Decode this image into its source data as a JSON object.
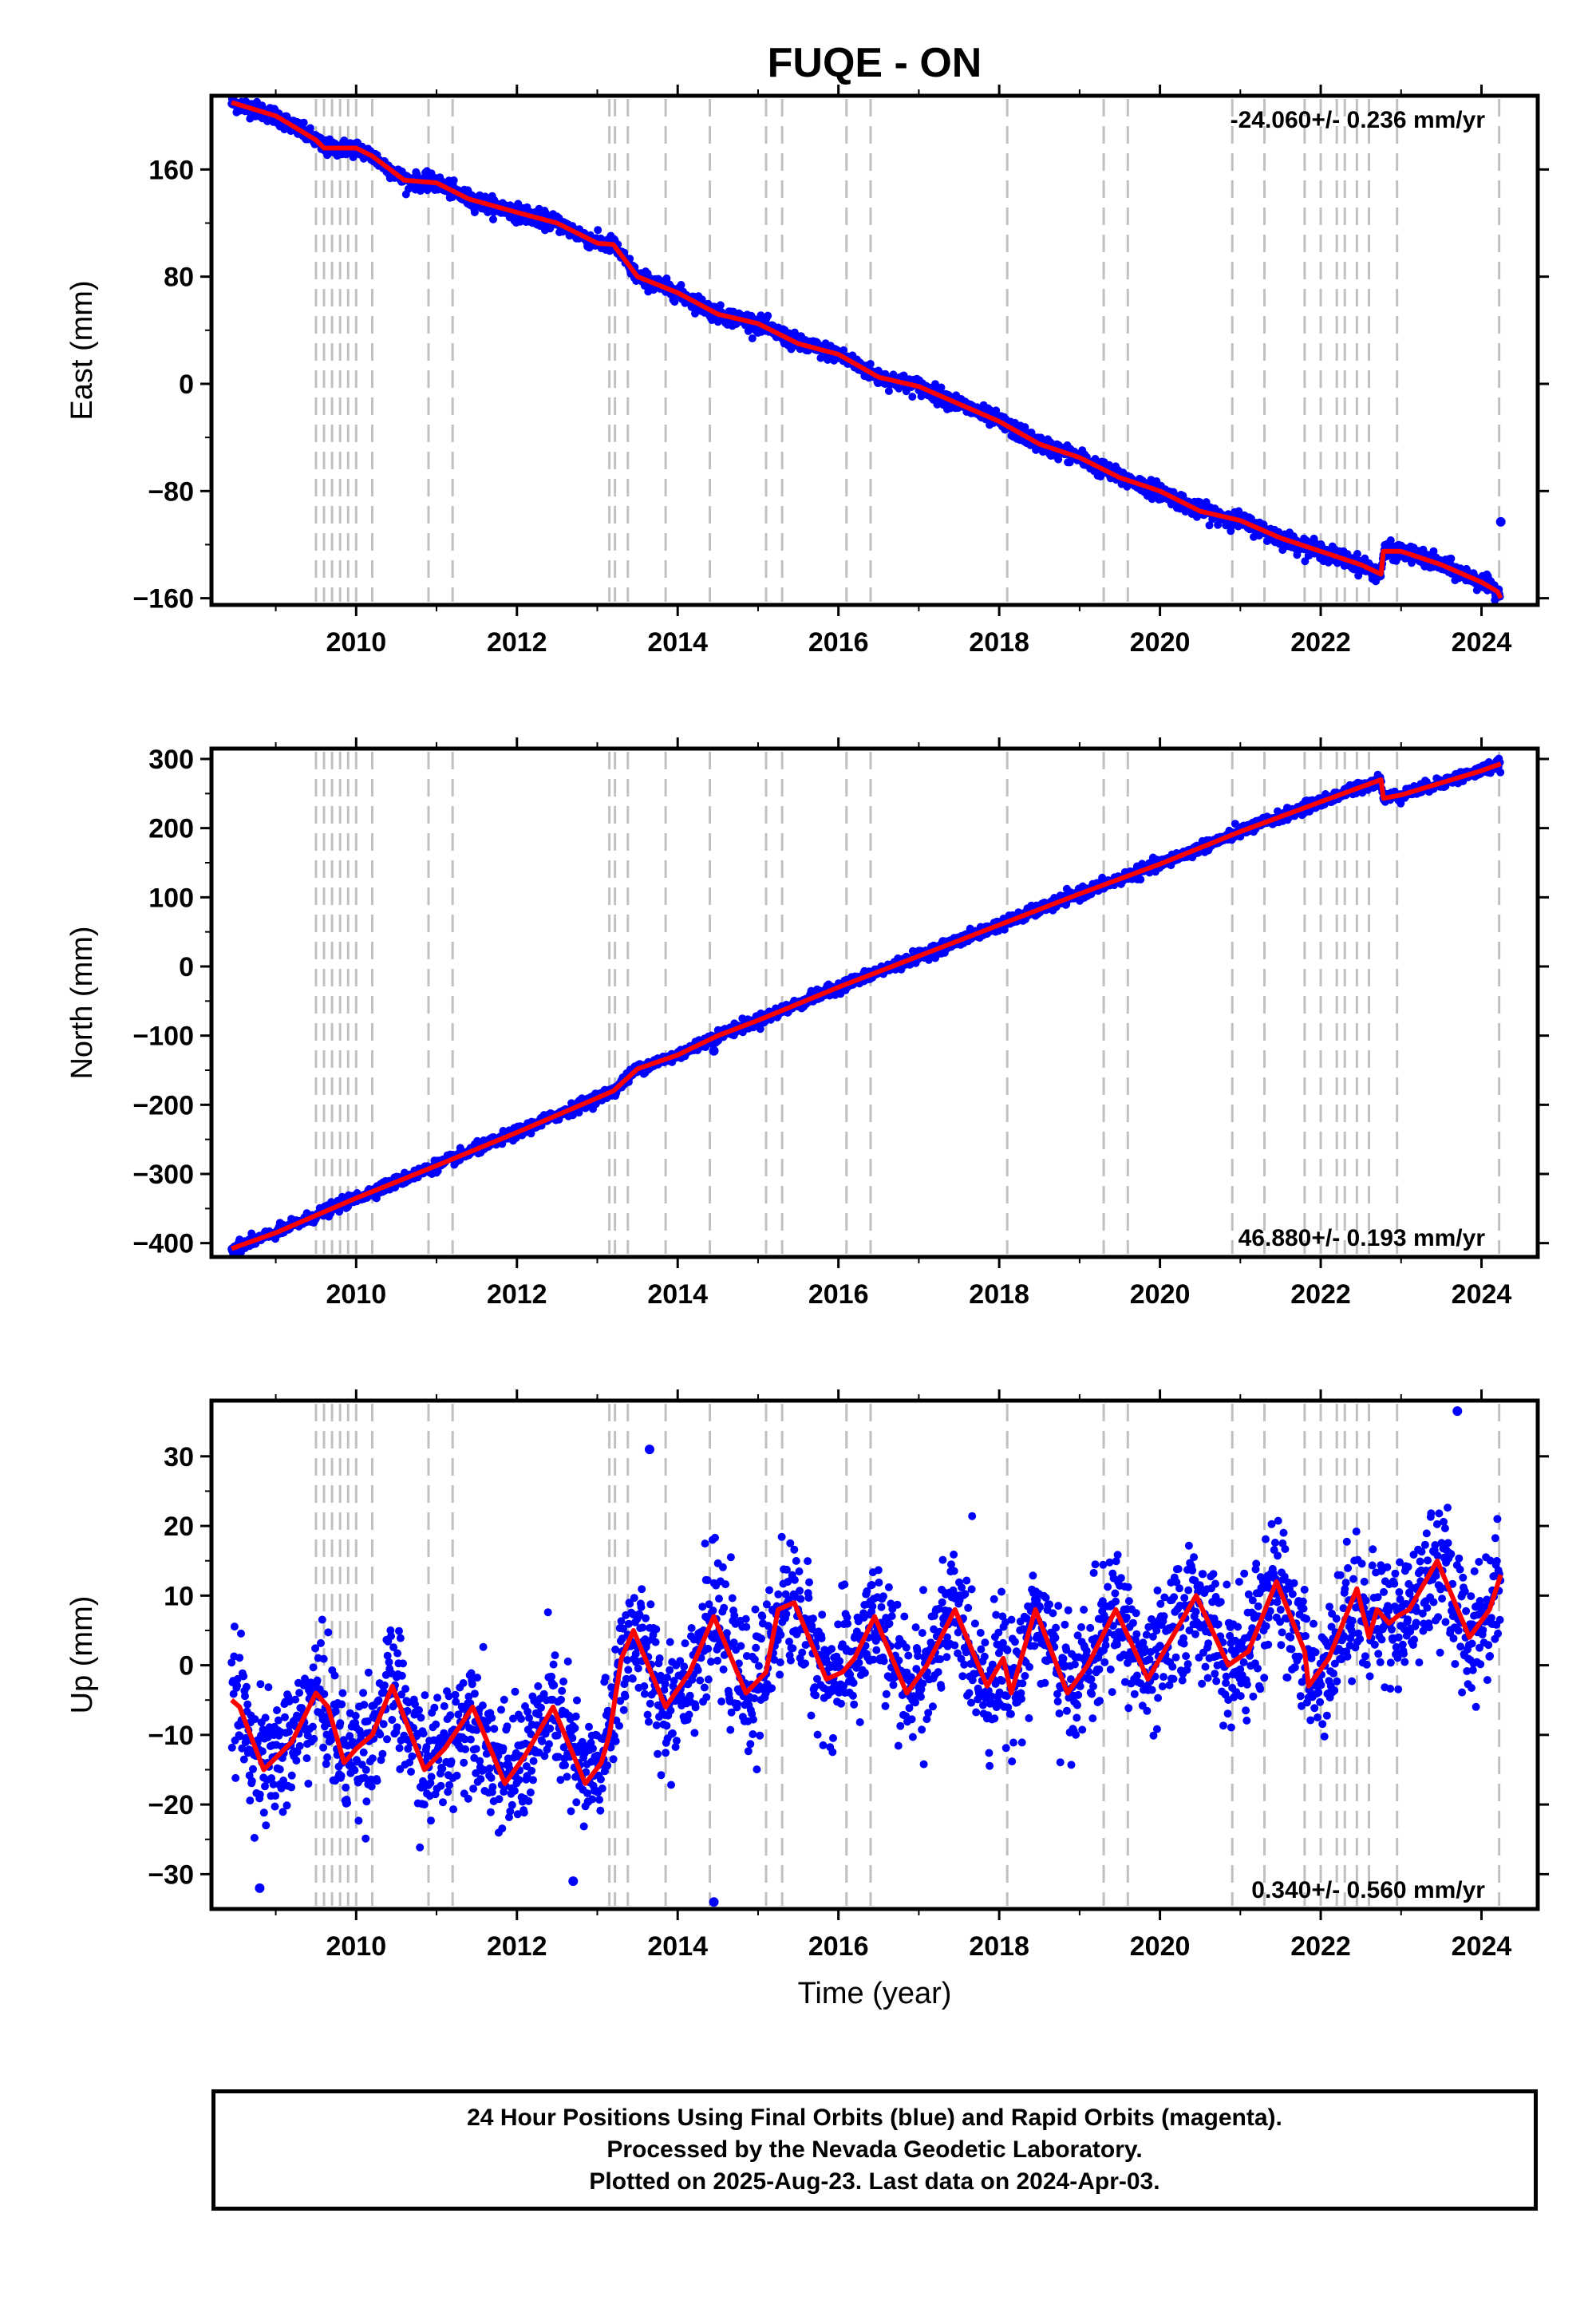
{
  "title": "FUQE - ON",
  "footer": {
    "line1": "24 Hour Positions Using Final Orbits (blue) and Rapid Orbits (magenta).",
    "line2": "Processed by the Nevada Geodetic Laboratory.",
    "line3": "Plotted on 2025-Aug-23. Last data on 2024-Apr-03."
  },
  "colors": {
    "data_points": "#0000ff",
    "model_line": "#ff0000",
    "event_lines": "#c0c0c0"
  },
  "chart_data": [
    {
      "type": "scatter",
      "name": "east",
      "ylabel": "East (mm)",
      "xlabel": "",
      "rate_label": "-24.060+/- 0.236 mm/yr",
      "rate_position": "top-right",
      "xlim": [
        2008.2,
        2024.7
      ],
      "ylim": [
        -165,
        215
      ],
      "xticks": [
        2010,
        2012,
        2014,
        2016,
        2018,
        2020,
        2022,
        2024
      ],
      "yticks": [
        -160,
        -80,
        0,
        80,
        160
      ],
      "event_lines": [
        2009.5,
        2009.6,
        2009.7,
        2009.8,
        2009.9,
        2010.0,
        2010.2,
        2010.9,
        2011.2,
        2013.15,
        2013.22,
        2013.38,
        2013.85,
        2014.4,
        2015.1,
        2015.3,
        2016.1,
        2016.4,
        2018.1,
        2019.3,
        2019.6,
        2020.9,
        2021.3,
        2021.8,
        2022.0,
        2022.2,
        2022.3,
        2022.45,
        2022.6,
        2022.95,
        2024.22
      ],
      "model": {
        "x": [
          2008.45,
          2009.0,
          2009.5,
          2009.6,
          2010.0,
          2010.2,
          2010.6,
          2011.0,
          2011.4,
          2012.0,
          2012.5,
          2013.0,
          2013.2,
          2013.5,
          2014.0,
          2014.5,
          2015.0,
          2015.5,
          2016.0,
          2016.5,
          2017.0,
          2017.5,
          2018.0,
          2018.5,
          2019.0,
          2019.5,
          2020.0,
          2020.5,
          2021.0,
          2021.5,
          2022.0,
          2022.5,
          2022.75,
          2022.78,
          2023.0,
          2023.5,
          2024.0,
          2024.2,
          2024.24
        ],
        "y": [
          210,
          200,
          182,
          176,
          176,
          170,
          152,
          150,
          138,
          128,
          120,
          105,
          104,
          80,
          68,
          52,
          45,
          30,
          22,
          5,
          -2,
          -15,
          -28,
          -45,
          -55,
          -70,
          -80,
          -95,
          -102,
          -115,
          -125,
          -135,
          -142,
          -125,
          -125,
          -135,
          -148,
          -155,
          -160
        ]
      },
      "scatter_noise": 3,
      "outliers": [
        {
          "x": 2024.24,
          "y": -103
        }
      ]
    },
    {
      "type": "scatter",
      "name": "north",
      "ylabel": "North (mm)",
      "xlabel": "",
      "rate_label": "46.880+/- 0.193 mm/yr",
      "rate_position": "bottom-right",
      "xlim": [
        2008.2,
        2024.7
      ],
      "ylim": [
        -420,
        315
      ],
      "xticks": [
        2010,
        2012,
        2014,
        2016,
        2018,
        2020,
        2022,
        2024
      ],
      "yticks": [
        -400,
        -300,
        -200,
        -100,
        0,
        100,
        200,
        300
      ],
      "event_lines": [
        2009.5,
        2009.6,
        2009.7,
        2009.8,
        2009.9,
        2010.0,
        2010.2,
        2010.9,
        2011.2,
        2013.15,
        2013.22,
        2013.38,
        2013.85,
        2014.4,
        2015.1,
        2015.3,
        2016.1,
        2016.4,
        2018.1,
        2019.3,
        2019.6,
        2020.9,
        2021.3,
        2021.8,
        2022.0,
        2022.2,
        2022.3,
        2022.45,
        2022.6,
        2022.95,
        2024.22
      ],
      "model": {
        "x": [
          2008.45,
          2009.0,
          2010.0,
          2011.0,
          2012.0,
          2013.0,
          2013.2,
          2013.5,
          2014.0,
          2014.5,
          2015.0,
          2016.0,
          2017.0,
          2018.0,
          2019.0,
          2020.0,
          2021.0,
          2022.0,
          2022.75,
          2022.78,
          2023.0,
          2024.0,
          2024.24
        ],
        "y": [
          -408,
          -385,
          -335,
          -288,
          -240,
          -190,
          -180,
          -148,
          -128,
          -100,
          -78,
          -30,
          15,
          60,
          105,
          148,
          195,
          238,
          270,
          243,
          248,
          283,
          293
        ]
      },
      "scatter_noise": 4,
      "outliers": [
        {
          "x": 2014.45,
          "y": -122
        }
      ]
    },
    {
      "type": "scatter",
      "name": "up",
      "ylabel": "Up (mm)",
      "xlabel": "Time (year)",
      "rate_label": "0.340+/- 0.560 mm/yr",
      "rate_position": "bottom-right",
      "xlim": [
        2008.2,
        2024.7
      ],
      "ylim": [
        -35,
        38
      ],
      "xticks": [
        2010,
        2012,
        2014,
        2016,
        2018,
        2020,
        2022,
        2024
      ],
      "yticks": [
        -30,
        -20,
        -10,
        0,
        10,
        20,
        30
      ],
      "event_lines": [
        2009.5,
        2009.6,
        2009.7,
        2009.8,
        2009.9,
        2010.0,
        2010.2,
        2010.9,
        2011.2,
        2013.15,
        2013.22,
        2013.38,
        2013.85,
        2014.4,
        2015.1,
        2015.3,
        2016.1,
        2016.4,
        2018.1,
        2019.3,
        2019.6,
        2020.9,
        2021.3,
        2021.8,
        2022.0,
        2022.2,
        2022.3,
        2022.45,
        2022.6,
        2022.95,
        2024.22
      ],
      "model": {
        "x": [
          2008.45,
          2008.55,
          2008.85,
          2009.2,
          2009.5,
          2009.65,
          2009.85,
          2010.0,
          2010.2,
          2010.45,
          2010.85,
          2011.1,
          2011.45,
          2011.85,
          2012.1,
          2012.45,
          2012.85,
          2013.05,
          2013.15,
          2013.3,
          2013.45,
          2013.85,
          2014.15,
          2014.45,
          2014.85,
          2015.1,
          2015.25,
          2015.45,
          2015.85,
          2016.05,
          2016.2,
          2016.45,
          2016.85,
          2017.1,
          2017.45,
          2017.85,
          2018.05,
          2018.15,
          2018.45,
          2018.85,
          2019.1,
          2019.45,
          2019.85,
          2020.1,
          2020.45,
          2020.85,
          2021.1,
          2021.45,
          2021.8,
          2021.85,
          2022.1,
          2022.45,
          2022.6,
          2022.7,
          2022.85,
          2022.95,
          2023.1,
          2023.45,
          2023.85,
          2024.1,
          2024.24
        ],
        "y": [
          -5,
          -6,
          -15,
          -11,
          -4,
          -6,
          -14,
          -12,
          -10,
          -3,
          -15,
          -12,
          -6,
          -17,
          -13,
          -6,
          -17,
          -14,
          -10,
          1,
          5,
          -6,
          -1,
          7,
          -4,
          -1,
          8,
          9,
          -2,
          -1,
          1,
          7,
          -4,
          0,
          8,
          -3,
          1,
          -4,
          8,
          -4,
          0,
          8,
          -2,
          3,
          10,
          0,
          2,
          12,
          2,
          -3,
          1,
          11,
          4,
          8,
          6,
          7,
          8,
          15,
          4,
          8,
          13
        ]
      },
      "scatter_noise": 4.5,
      "outliers": [
        {
          "x": 2013.65,
          "y": 31
        },
        {
          "x": 2014.45,
          "y": -34
        },
        {
          "x": 2023.7,
          "y": 36.5
        },
        {
          "x": 2008.8,
          "y": -32
        },
        {
          "x": 2012.7,
          "y": -31
        }
      ]
    }
  ]
}
